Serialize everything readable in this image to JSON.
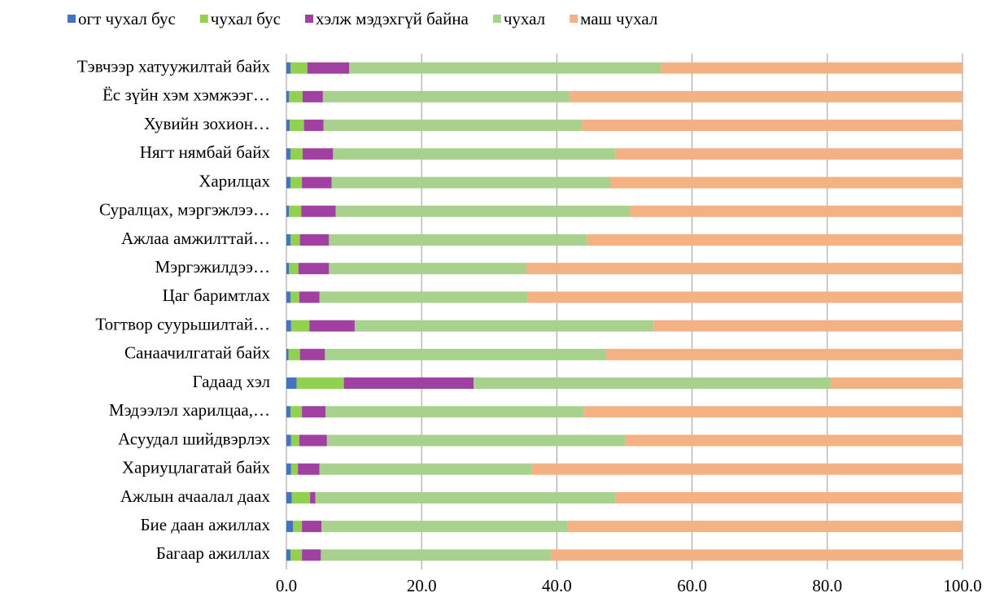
{
  "chart_data": {
    "type": "stacked-bar-horizontal",
    "categories": [
      "Тэвчээр хатуужилтай байх",
      "Ёс зүйн хэм хэмжээг…",
      "Хувийн зохион…",
      "Нягт нямбай байх",
      "Харилцах",
      "Суралцах, мэргэжлээ…",
      "Ажлаа амжилттай…",
      "Мэргэжилдээ…",
      "Цаг баримтлах",
      "Тогтвор суурьшилтай…",
      "Санаачилгатай байх",
      "Гадаад хэл",
      "Мэдээлэл харилцаа,…",
      "Асуудал шийдвэрлэх",
      "Хариуцлагатай байх",
      "Ажлын ачаалал даах",
      "Бие даан ажиллах",
      "Багаар ажиллах"
    ],
    "series": [
      {
        "name": "огт чухал бус",
        "color": "#4472c4",
        "values": [
          0.6,
          0.4,
          0.5,
          0.6,
          0.6,
          0.4,
          0.6,
          0.4,
          0.6,
          0.7,
          0.3,
          1.5,
          0.6,
          0.7,
          0.7,
          0.8,
          1.0,
          0.6
        ]
      },
      {
        "name": "чухал бус",
        "color": "#92d050",
        "values": [
          2.5,
          2.0,
          2.1,
          1.8,
          1.7,
          1.8,
          1.4,
          1.4,
          1.3,
          2.7,
          1.7,
          7.0,
          1.7,
          1.2,
          1.0,
          2.7,
          1.3,
          1.7
        ]
      },
      {
        "name": "хэлж мэдэхгүй байна",
        "color": "#a040a0",
        "values": [
          6.2,
          3.0,
          2.9,
          4.5,
          4.4,
          5.1,
          4.3,
          4.5,
          3.0,
          6.7,
          3.7,
          19.2,
          3.5,
          4.1,
          3.2,
          0.8,
          2.9,
          2.8
        ]
      },
      {
        "name": "чухал",
        "color": "#a9d18e",
        "values": [
          46.1,
          36.5,
          38.2,
          41.8,
          41.2,
          43.5,
          38.2,
          29.2,
          30.8,
          44.2,
          41.6,
          52.8,
          38.2,
          44.1,
          31.4,
          44.4,
          36.4,
          34.0
        ]
      },
      {
        "name": "маш чухал",
        "color": "#f4b183",
        "values": [
          44.6,
          58.1,
          56.3,
          51.3,
          52.1,
          49.2,
          55.5,
          64.5,
          64.3,
          45.7,
          52.7,
          19.5,
          56.0,
          49.9,
          63.7,
          51.3,
          58.4,
          60.9
        ]
      }
    ],
    "xlim": [
      0,
      100
    ],
    "xticks": [
      {
        "value": 0,
        "label": "0.0"
      },
      {
        "value": 20,
        "label": "20.0"
      },
      {
        "value": 40,
        "label": "40.0"
      },
      {
        "value": 60,
        "label": "60.0"
      },
      {
        "value": 80,
        "label": "80.0"
      },
      {
        "value": 100,
        "label": "100.0"
      }
    ],
    "grid": true,
    "legend": "top"
  }
}
